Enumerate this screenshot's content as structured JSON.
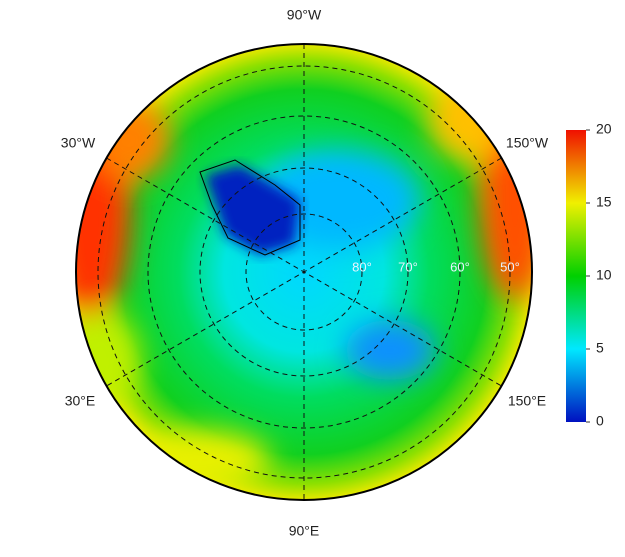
{
  "map": {
    "meridian_labels": [
      "90°W",
      "30°W",
      "150°W",
      "30°E",
      "150°E",
      "90°E"
    ],
    "latitude_labels": [
      "80°",
      "70°",
      "60°",
      "50°"
    ]
  },
  "colorbar": {
    "lim": [
      0,
      20
    ],
    "ticks": [
      0,
      5,
      10,
      15,
      20
    ]
  }
}
